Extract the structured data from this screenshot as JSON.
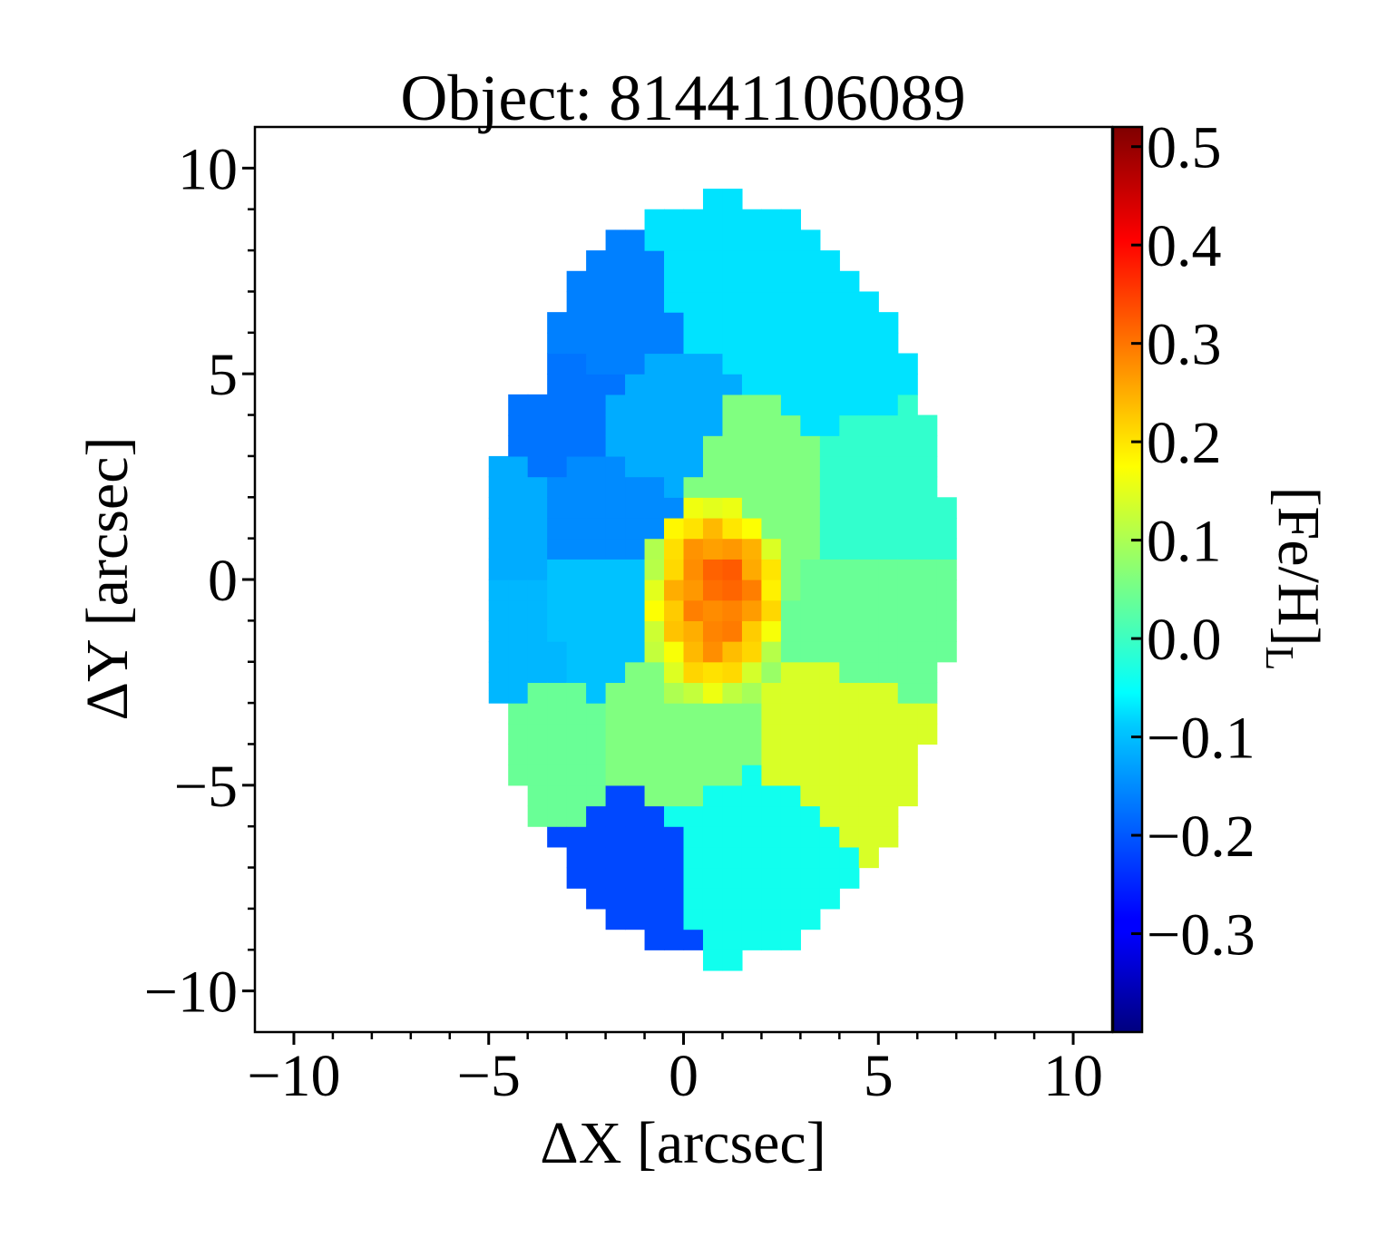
{
  "chart_data": {
    "type": "heatmap",
    "title": "Object: 81441106089",
    "xlabel": "ΔX [arcsec]",
    "ylabel": "ΔY [arcsec]",
    "colorbar_label": "[Fe/H]",
    "colorbar_label_subscript": "L",
    "xlim": [
      -11,
      11
    ],
    "ylim": [
      -11,
      11
    ],
    "x_ticks": [
      -10,
      -5,
      0,
      5,
      10
    ],
    "y_ticks": [
      -10,
      -5,
      0,
      5,
      10
    ],
    "x_tick_labels": [
      "−10",
      "−5",
      "0",
      "5",
      "10"
    ],
    "y_tick_labels": [
      "−10",
      "−5",
      "0",
      "5",
      "10"
    ],
    "colormap": "jet",
    "color_range": [
      -0.4,
      0.52
    ],
    "colorbar_ticks": [
      0.5,
      0.4,
      0.3,
      0.2,
      0.1,
      0.0,
      -0.1,
      -0.2,
      -0.3
    ],
    "colorbar_tick_labels": [
      "0.5",
      "0.4",
      "0.3",
      "0.2",
      "0.1",
      "0.0",
      "−0.1",
      "−0.2",
      "−0.3"
    ],
    "field": {
      "center": [
        0.9,
        0.0
      ],
      "semi_axes": [
        6.0,
        9.3
      ],
      "pixel_size": 0.5
    },
    "bins": [
      {
        "x": 4.0,
        "y": 6.0,
        "value": -0.08
      },
      {
        "x": 5.2,
        "y": 2.0,
        "value": -0.01
      },
      {
        "x": 5.3,
        "y": -1.0,
        "value": 0.04
      },
      {
        "x": 4.2,
        "y": -4.0,
        "value": 0.14
      },
      {
        "x": 1.8,
        "y": -6.8,
        "value": -0.04
      },
      {
        "x": -1.8,
        "y": -7.5,
        "value": -0.22
      },
      {
        "x": -4.0,
        "y": -4.2,
        "value": 0.04
      },
      {
        "x": -4.8,
        "y": -1.5,
        "value": -0.12
      },
      {
        "x": -5.3,
        "y": 1.5,
        "value": -0.13
      },
      {
        "x": -3.2,
        "y": 4.2,
        "value": -0.18
      },
      {
        "x": -2.5,
        "y": 6.6,
        "value": -0.17
      },
      {
        "x": 1.4,
        "y": 8.1,
        "value": -0.08
      },
      {
        "x": -1.6,
        "y": 1.8,
        "value": -0.16
      },
      {
        "x": -0.9,
        "y": 3.2,
        "value": -0.13
      },
      {
        "x": -2.0,
        "y": -0.8,
        "value": -0.11
      },
      {
        "x": 1.6,
        "y": 2.0,
        "value": 0.06
      },
      {
        "x": 0.0,
        "y": -3.3,
        "value": 0.06
      }
    ],
    "core": {
      "x": 0.8,
      "y": -0.6,
      "rx": 1.9,
      "ry": 2.6,
      "peak": 0.34,
      "edge": 0.12
    }
  }
}
